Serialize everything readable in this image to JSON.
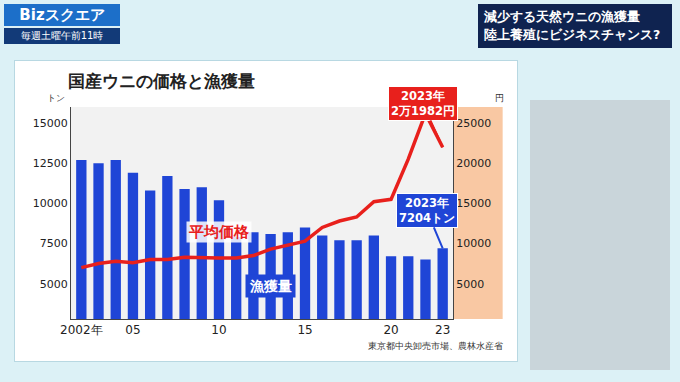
{
  "chart_data": {
    "type": "bar",
    "title": "国産ウニの価格と漁獲量",
    "categories": [
      "2002年",
      null,
      null,
      "05",
      null,
      null,
      null,
      null,
      "10",
      null,
      null,
      null,
      null,
      "15",
      null,
      null,
      null,
      null,
      "20",
      null,
      null,
      "23"
    ],
    "series": [
      {
        "name": "漁獲量",
        "type": "bar",
        "color": "#1f45d6",
        "values": [
          12700,
          12500,
          12700,
          11900,
          10800,
          11700,
          10900,
          11000,
          10200,
          7900,
          8200,
          8100,
          8200,
          8500,
          8000,
          7700,
          7700,
          8000,
          6700,
          6700,
          6500,
          7204
        ]
      },
      {
        "name": "平均価格",
        "type": "line",
        "color": "#e8201c",
        "axis": "y2",
        "values": [
          7000,
          7500,
          7800,
          7600,
          8000,
          8000,
          8300,
          8200,
          8200,
          8200,
          8500,
          9300,
          9800,
          10300,
          12000,
          12800,
          13300,
          15200,
          15500,
          20500,
          26200,
          21982
        ]
      }
    ],
    "ylim": [
      2800,
      16000
    ],
    "yticks": [
      5000,
      7500,
      10000,
      12500,
      15000
    ],
    "y2lim": [
      600,
      27000
    ],
    "y2ticks": [
      5000,
      10000,
      15000,
      20000,
      25000
    ],
    "ylabel": "トン",
    "y2label": "円",
    "annotations": [
      {
        "series": "平均価格",
        "category": "23",
        "text": [
          "2023年",
          "2万1982円"
        ]
      },
      {
        "series": "漁獲量",
        "category": "23",
        "text": [
          "2023年",
          "7204トン"
        ]
      }
    ],
    "source": "東京都中央卸売市場、農林水産省",
    "grid": false
  },
  "screen": {
    "program": "Bizスクエア",
    "schedule": "毎週土曜午前11時",
    "headline": [
      "減少する天然ウニの漁獲量",
      "陸上養殖にビジネスチャンス?"
    ]
  }
}
